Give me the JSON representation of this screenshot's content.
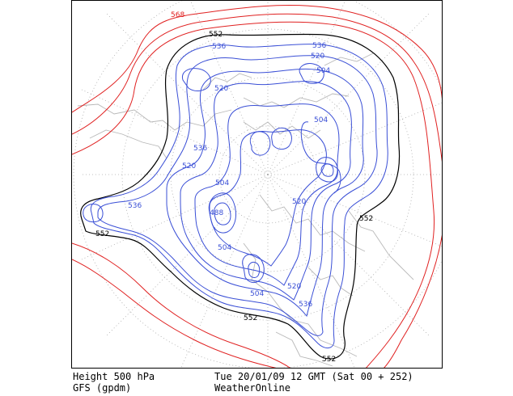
{
  "colors": {
    "blue_contour": "#3a4fd6",
    "black_contour": "#000000",
    "red_contour": "#e02020",
    "coast": "#b8b8b8",
    "grid": "#aaaaaa"
  },
  "contour_labels": {
    "l568": "568",
    "l552a": "552",
    "l552b": "552",
    "l552c": "552",
    "l552d": "552",
    "l552e": "552",
    "l536a": "536",
    "l536b": "536",
    "l536c": "536",
    "l536d": "536",
    "l536e": "536",
    "l520a": "520",
    "l520b": "520",
    "l520c": "520",
    "l520d": "520",
    "l520e": "520",
    "l504a": "504",
    "l504b": "504",
    "l504c": "504",
    "l504d": "504",
    "l504e": "504",
    "l488": "488"
  },
  "footer": {
    "left_line1": "Height 500 hPa",
    "left_line2": "GFS (gpdm)",
    "right_line1": "Tue 20/01/09 12 GMT (Sat 00 + 252)",
    "right_line2": "WeatherOnline"
  }
}
